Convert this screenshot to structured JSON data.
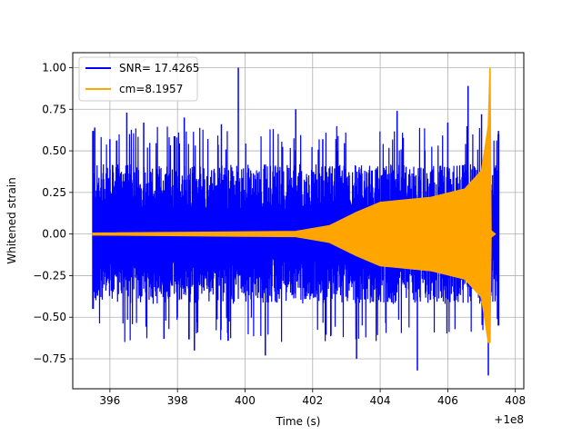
{
  "chart_data": {
    "type": "line",
    "title": "",
    "xlabel": "Time (s)",
    "ylabel": "Whitened strain",
    "offset_label": "+1e8",
    "xlim": [
      394.9,
      408.25
    ],
    "ylim": [
      -0.93,
      1.09
    ],
    "x_ticks": [
      396,
      398,
      400,
      402,
      404,
      406,
      408
    ],
    "x_tick_labels": [
      "396",
      "398",
      "400",
      "402",
      "404",
      "406",
      "408"
    ],
    "y_ticks": [
      -0.75,
      -0.5,
      -0.25,
      0.0,
      0.25,
      0.5,
      0.75,
      1.0
    ],
    "y_tick_labels": [
      "−0.75",
      "−0.50",
      "−0.25",
      "0.00",
      "0.25",
      "0.50",
      "0.75",
      "1.00"
    ],
    "grid": true,
    "legend": {
      "position": "top-left",
      "entries": [
        {
          "label": "SNR= 17.4265",
          "color": "#0000ff"
        },
        {
          "label": "cm=8.1957",
          "color": "#ffa500"
        }
      ]
    },
    "series": [
      {
        "name": "SNR= 17.4265",
        "color": "#0000ff",
        "x_range": [
          395.5,
          407.5
        ],
        "typical_envelope": 0.42,
        "spikes": [
          {
            "x": 395.55,
            "y": 0.64
          },
          {
            "x": 396.0,
            "y": 0.57
          },
          {
            "x": 396.5,
            "y": 0.73
          },
          {
            "x": 397.0,
            "y": 0.67
          },
          {
            "x": 397.6,
            "y": -0.63
          },
          {
            "x": 398.2,
            "y": 0.7
          },
          {
            "x": 398.5,
            "y": -0.7
          },
          {
            "x": 399.3,
            "y": 0.66
          },
          {
            "x": 399.8,
            "y": 1.0
          },
          {
            "x": 400.6,
            "y": -0.73
          },
          {
            "x": 401.5,
            "y": 0.75
          },
          {
            "x": 402.3,
            "y": 0.57
          },
          {
            "x": 403.3,
            "y": -0.75
          },
          {
            "x": 404.5,
            "y": 0.74
          },
          {
            "x": 405.1,
            "y": -0.82
          },
          {
            "x": 406.0,
            "y": 0.67
          },
          {
            "x": 406.6,
            "y": 0.89
          },
          {
            "x": 407.0,
            "y": 0.72
          },
          {
            "x": 407.2,
            "y": -0.85
          },
          {
            "x": 407.5,
            "y": 0.62
          }
        ]
      },
      {
        "name": "cm=8.1957",
        "color": "#ffa500",
        "x_range": [
          395.5,
          407.5
        ],
        "envelope_points": [
          {
            "x": 395.5,
            "y": 0.005
          },
          {
            "x": 401.5,
            "y": 0.015
          },
          {
            "x": 402.5,
            "y": 0.05
          },
          {
            "x": 403.3,
            "y": 0.13
          },
          {
            "x": 404.0,
            "y": 0.19
          },
          {
            "x": 404.5,
            "y": 0.2
          },
          {
            "x": 405.5,
            "y": 0.22
          },
          {
            "x": 406.5,
            "y": 0.27
          },
          {
            "x": 407.0,
            "y": 0.38
          },
          {
            "x": 407.2,
            "y": 0.65
          }
        ],
        "peak": {
          "x": 407.25,
          "y_max": 1.0,
          "y_min": -0.65
        },
        "ringdown_end": 407.4
      }
    ]
  }
}
